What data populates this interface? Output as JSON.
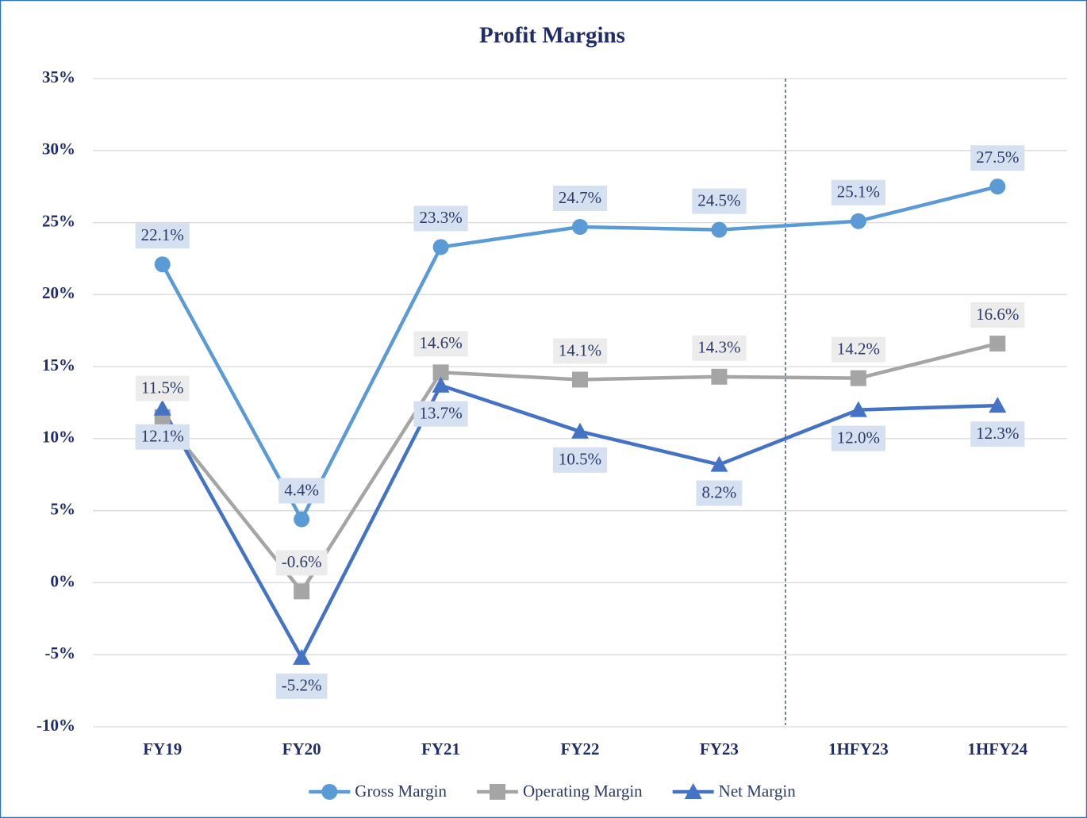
{
  "chart_data": {
    "type": "line",
    "title": "Profit Margins",
    "categories": [
      "FY19",
      "FY20",
      "FY21",
      "FY22",
      "FY23",
      "1HFY23",
      "1HFY24"
    ],
    "series": [
      {
        "name": "Gross Margin",
        "color": "#5b9bd5",
        "marker": "circle",
        "values": [
          22.1,
          4.4,
          23.3,
          24.7,
          24.5,
          25.1,
          27.5
        ],
        "value_labels": [
          "22.1%",
          "4.4%",
          "23.3%",
          "24.7%",
          "24.5%",
          "25.1%",
          "27.5%"
        ]
      },
      {
        "name": "Operating Margin",
        "color": "#a5a5a5",
        "marker": "square",
        "values": [
          11.5,
          -0.6,
          14.6,
          14.1,
          14.3,
          14.2,
          16.6
        ],
        "value_labels": [
          "11.5%",
          "-0.6%",
          "14.6%",
          "14.1%",
          "14.3%",
          "14.2%",
          "16.6%"
        ]
      },
      {
        "name": "Net Margin",
        "color": "#4472c4",
        "marker": "triangle",
        "values": [
          12.1,
          -5.2,
          13.7,
          10.5,
          8.2,
          12.0,
          12.3
        ],
        "value_labels": [
          "12.1%",
          "-5.2%",
          "13.7%",
          "10.5%",
          "8.2%",
          "12.0%",
          "12.3%"
        ]
      }
    ],
    "ylim": [
      -10,
      35
    ],
    "yticks": [
      {
        "value": -10,
        "label": "-10%"
      },
      {
        "value": -5,
        "label": "-5%"
      },
      {
        "value": 0,
        "label": "0%"
      },
      {
        "value": 5,
        "label": "5%"
      },
      {
        "value": 10,
        "label": "10%"
      },
      {
        "value": 15,
        "label": "15%"
      },
      {
        "value": 20,
        "label": "20%"
      },
      {
        "value": 25,
        "label": "25%"
      },
      {
        "value": 30,
        "label": "30%"
      },
      {
        "value": 35,
        "label": "35%"
      }
    ],
    "grid": true,
    "legend": "bottom"
  }
}
